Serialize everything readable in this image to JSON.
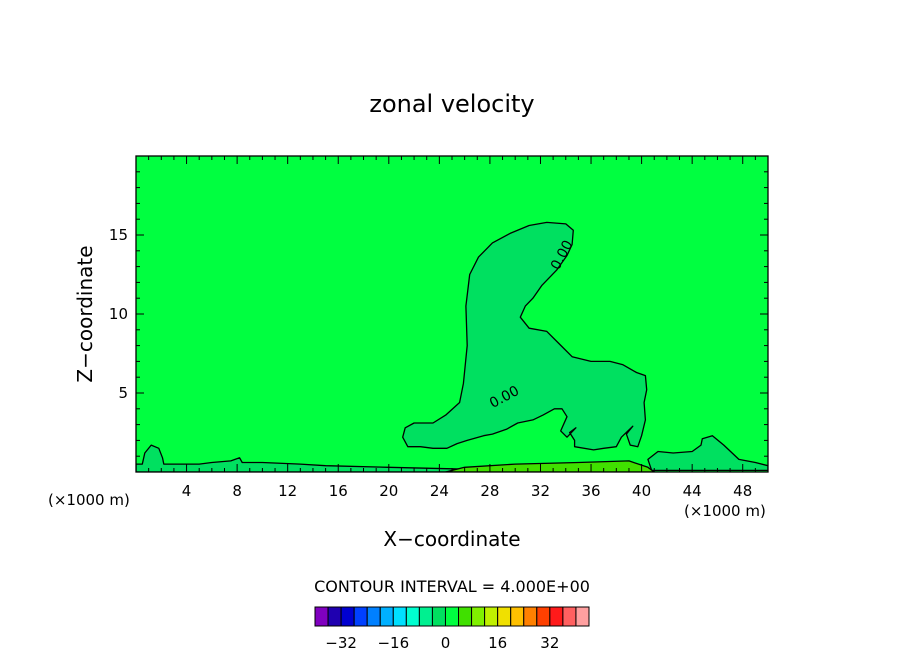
{
  "chart_data": {
    "type": "heatmap",
    "title": "zonal velocity",
    "xlabel": "X−coordinate",
    "ylabel": "Z−coordinate",
    "x_unit": "(×1000 m)",
    "x_unit_right": "(×1000 m)",
    "xlim": [
      0,
      50
    ],
    "ylim": [
      0,
      20
    ],
    "x_ticks": [
      4,
      8,
      12,
      16,
      20,
      24,
      28,
      32,
      36,
      40,
      44,
      48
    ],
    "y_ticks": [
      5,
      10,
      15
    ],
    "contour_interval_label": "CONTOUR INTERVAL = 4.000E+00",
    "contour_labels": [
      "0.00",
      "0.00"
    ],
    "background_field_value": 2,
    "regions": [
      {
        "name": "negative-plume",
        "value": -2,
        "outline": [
          [
            21.1,
            2.2
          ],
          [
            21.3,
            2.8
          ],
          [
            22,
            3.1
          ],
          [
            23.5,
            3.1
          ],
          [
            24.5,
            3.6
          ],
          [
            25.6,
            4.4
          ],
          [
            25.9,
            5.6
          ],
          [
            26.2,
            8
          ],
          [
            26.1,
            10.5
          ],
          [
            26.4,
            12.5
          ],
          [
            27.1,
            13.6
          ],
          [
            28.2,
            14.5
          ],
          [
            29.6,
            15.1
          ],
          [
            31.1,
            15.6
          ],
          [
            32.5,
            15.8
          ],
          [
            34,
            15.7
          ],
          [
            34.6,
            15.3
          ],
          [
            34.5,
            14.4
          ],
          [
            34.1,
            13.7
          ],
          [
            33.3,
            12.8
          ],
          [
            32.1,
            11.8
          ],
          [
            31.4,
            11
          ],
          [
            30.8,
            10.5
          ],
          [
            30.4,
            9.8
          ],
          [
            31.1,
            9.1
          ],
          [
            32.5,
            8.9
          ],
          [
            33.5,
            8.1
          ],
          [
            34.5,
            7.3
          ],
          [
            36,
            7
          ],
          [
            37.5,
            7
          ],
          [
            38.5,
            6.8
          ],
          [
            39.6,
            6.3
          ],
          [
            40.3,
            6.1
          ],
          [
            40.4,
            5.2
          ],
          [
            40.2,
            4.4
          ],
          [
            40.3,
            3.3
          ],
          [
            40,
            2.3
          ],
          [
            39.7,
            1.6
          ],
          [
            39.1,
            1.7
          ],
          [
            38.8,
            2.4
          ],
          [
            39.3,
            2.9
          ],
          [
            38.4,
            2.2
          ],
          [
            38,
            1.6
          ],
          [
            37,
            1.5
          ],
          [
            36.2,
            1.4
          ],
          [
            34.7,
            1.6
          ],
          [
            34.7,
            2
          ],
          [
            34.3,
            2.5
          ],
          [
            34.8,
            2.8
          ],
          [
            34.1,
            2.2
          ],
          [
            33.6,
            2.6
          ],
          [
            34.1,
            3.5
          ],
          [
            33.7,
            4
          ],
          [
            33.1,
            4
          ],
          [
            32.2,
            3.6
          ],
          [
            31.4,
            3.3
          ],
          [
            30.2,
            3.1
          ],
          [
            29.3,
            2.7
          ],
          [
            28.2,
            2.4
          ],
          [
            27.5,
            2.3
          ],
          [
            26.2,
            2
          ],
          [
            25.4,
            1.8
          ],
          [
            24.6,
            1.5
          ],
          [
            23.5,
            1.5
          ],
          [
            22.5,
            1.6
          ],
          [
            21.5,
            1.6
          ],
          [
            21.1,
            2.2
          ]
        ]
      },
      {
        "name": "surface-layer",
        "value": -2,
        "outline": [
          [
            0,
            0
          ],
          [
            0,
            0.5
          ],
          [
            0.5,
            0.5
          ],
          [
            0.7,
            1.2
          ],
          [
            1.2,
            1.7
          ],
          [
            1.8,
            1.5
          ],
          [
            2.1,
            0.9
          ],
          [
            2.2,
            0.5
          ],
          [
            5,
            0.5
          ],
          [
            6,
            0.6
          ],
          [
            7.5,
            0.7
          ],
          [
            8.2,
            0.9
          ],
          [
            8.4,
            0.6
          ],
          [
            10,
            0.6
          ],
          [
            13,
            0.5
          ],
          [
            15,
            0.4
          ],
          [
            20,
            0.3
          ],
          [
            25,
            0.2
          ],
          [
            30,
            0.1
          ],
          [
            40,
            0.1
          ],
          [
            40,
            0
          ],
          [
            0,
            0
          ]
        ]
      },
      {
        "name": "lower-right-pocket",
        "value": -2,
        "outline": [
          [
            40.8,
            0.1
          ],
          [
            40.5,
            0.8
          ],
          [
            41.3,
            1.3
          ],
          [
            42.5,
            1.2
          ],
          [
            44,
            1.3
          ],
          [
            44.7,
            1.7
          ],
          [
            44.8,
            2.1
          ],
          [
            45.6,
            2.3
          ],
          [
            46.5,
            1.7
          ],
          [
            47.7,
            0.8
          ],
          [
            49,
            0.6
          ],
          [
            50,
            0.4
          ],
          [
            50,
            0.1
          ],
          [
            40.8,
            0.1
          ]
        ]
      },
      {
        "name": "surface-positive",
        "value": 6,
        "outline": [
          [
            24.5,
            0
          ],
          [
            26,
            0.3
          ],
          [
            30,
            0.5
          ],
          [
            35,
            0.6
          ],
          [
            39,
            0.7
          ],
          [
            40.5,
            0.3
          ],
          [
            41,
            0
          ],
          [
            24.5,
            0
          ]
        ]
      }
    ],
    "colorbar": {
      "colors": [
        "#8000c0",
        "#1f00b0",
        "#0000d0",
        "#0040ff",
        "#0080ff",
        "#00b0ff",
        "#00e0ff",
        "#00ffd0",
        "#00f090",
        "#00e060",
        "#00ff40",
        "#40e000",
        "#80f000",
        "#c0f000",
        "#f0e000",
        "#ffc000",
        "#ff8000",
        "#ff4000",
        "#ff1a1a",
        "#ff6060",
        "#ffa0a0"
      ],
      "range": [
        -40,
        44
      ],
      "tick_values": [
        -32,
        -16,
        0,
        16,
        32
      ],
      "tick_labels": [
        "−32",
        "−16",
        "0",
        "16",
        "32"
      ]
    }
  }
}
